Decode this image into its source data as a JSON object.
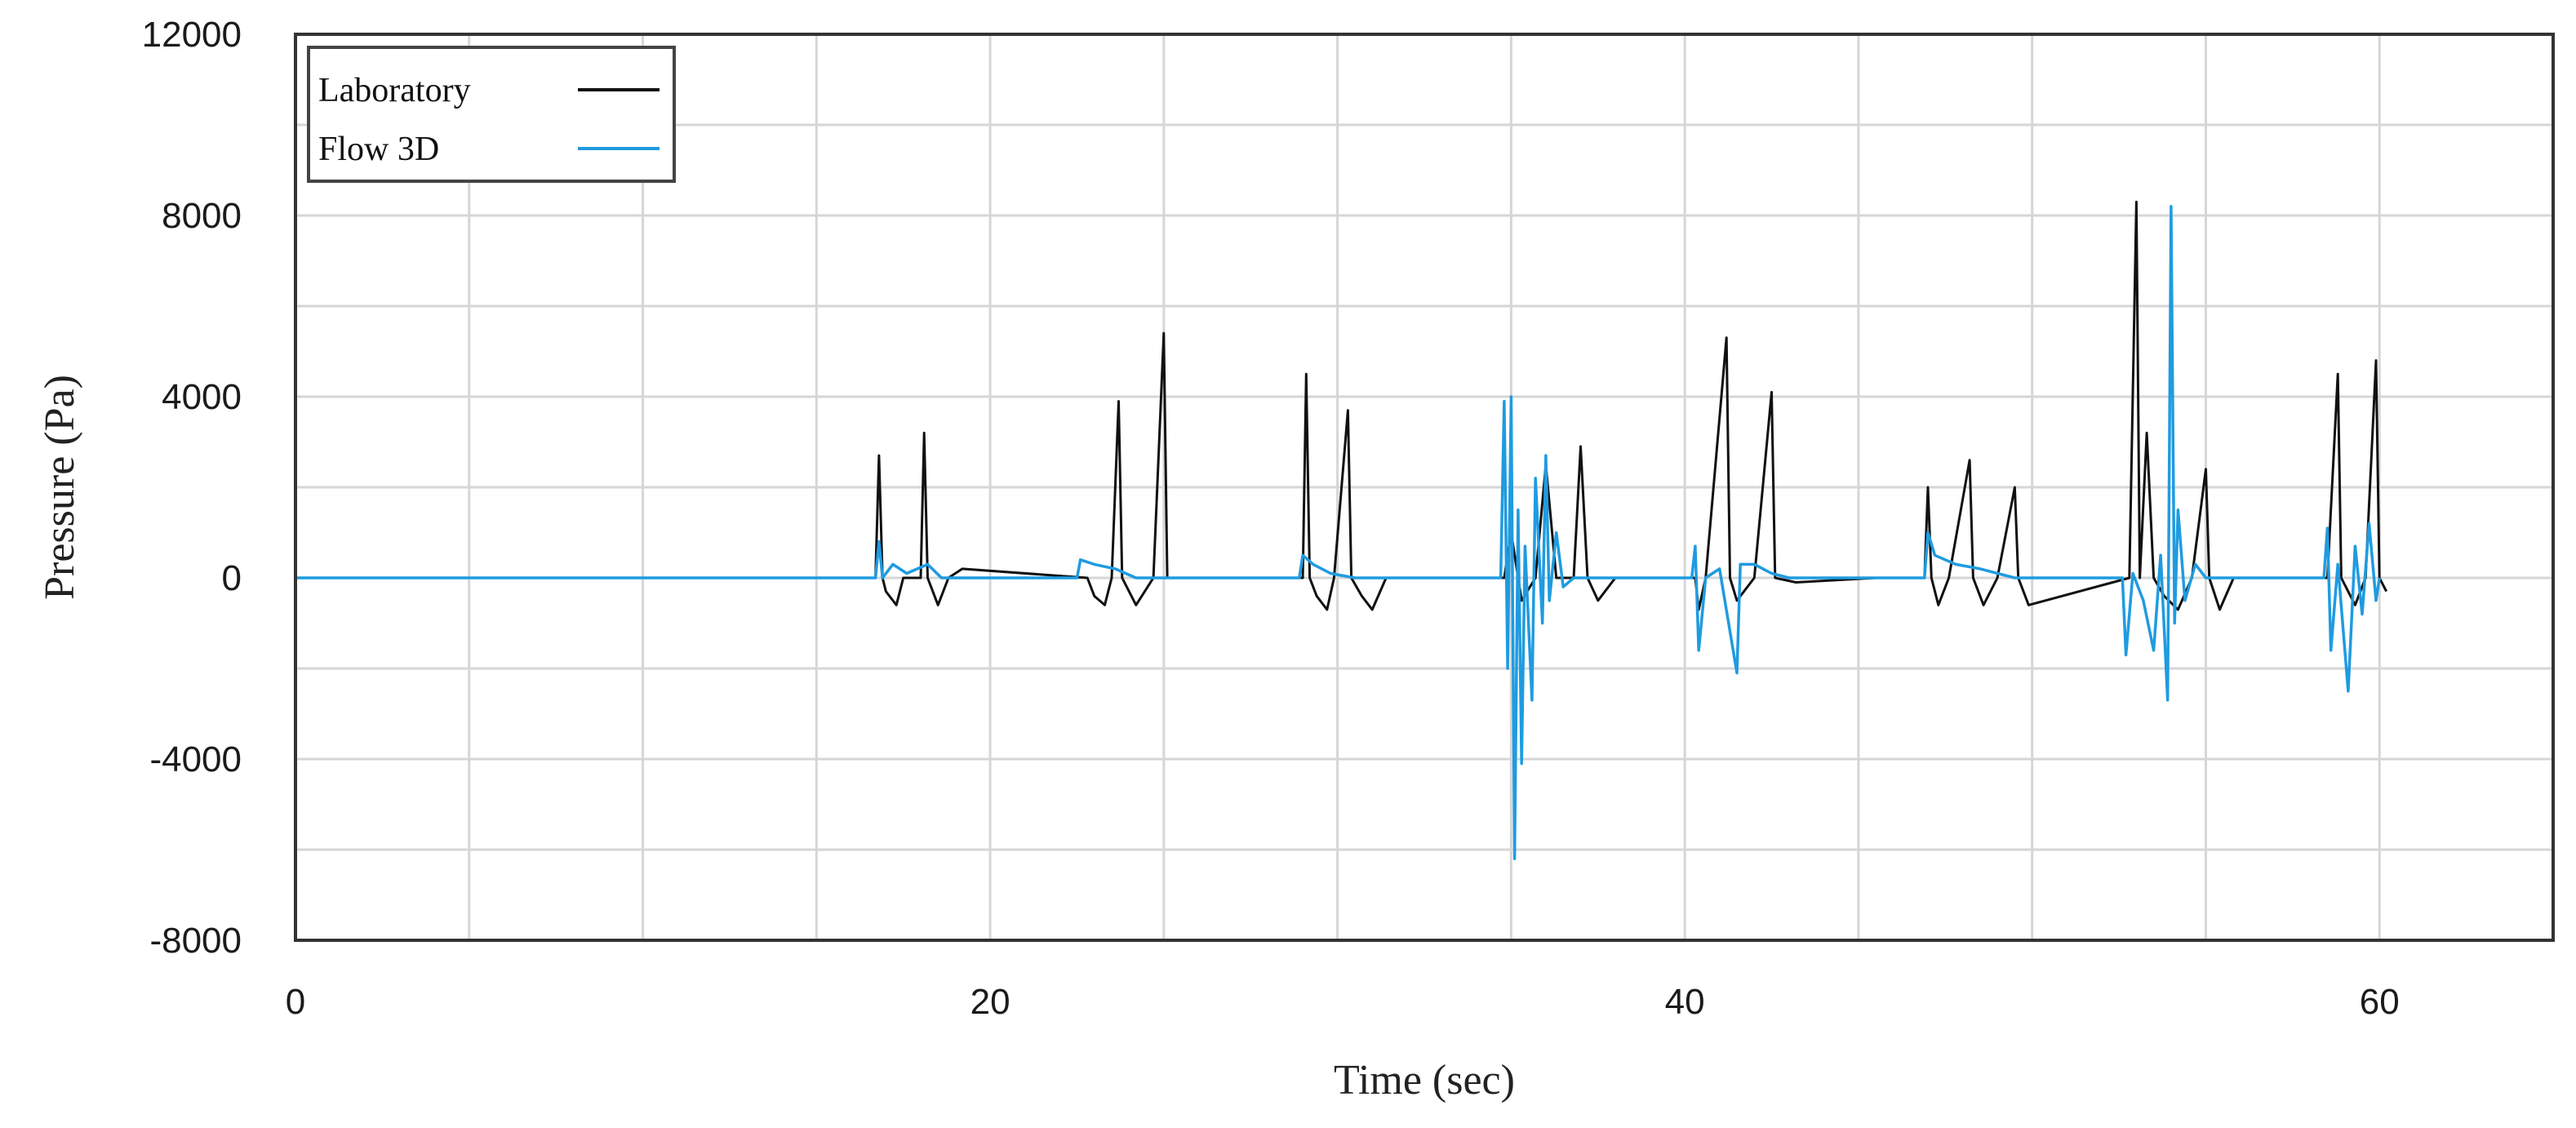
{
  "chart_data": {
    "type": "line",
    "xlabel": "Time (sec)",
    "ylabel": "Pressure (Pa)",
    "xlim": [
      0,
      65
    ],
    "ylim": [
      -8000,
      12000
    ],
    "xticks": [
      0,
      20,
      40,
      60
    ],
    "yticks": [
      12000,
      8000,
      4000,
      0,
      -4000,
      -8000
    ],
    "grid": true,
    "legend_position": "top-left",
    "series": [
      {
        "name": "Laboratory",
        "color": "#111111",
        "points": [
          [
            0,
            0
          ],
          [
            16.7,
            0
          ],
          [
            16.8,
            2700
          ],
          [
            16.9,
            0
          ],
          [
            17.0,
            -300
          ],
          [
            17.3,
            -600
          ],
          [
            17.5,
            0
          ],
          [
            18.0,
            0
          ],
          [
            18.1,
            3200
          ],
          [
            18.2,
            0
          ],
          [
            18.5,
            -600
          ],
          [
            18.8,
            0
          ],
          [
            19.2,
            200
          ],
          [
            22.8,
            0
          ],
          [
            23.0,
            -400
          ],
          [
            23.3,
            -600
          ],
          [
            23.5,
            0
          ],
          [
            23.7,
            3900
          ],
          [
            23.8,
            0
          ],
          [
            24.2,
            -600
          ],
          [
            24.7,
            0
          ],
          [
            25.0,
            5400
          ],
          [
            25.1,
            0
          ],
          [
            29.0,
            0
          ],
          [
            29.1,
            4500
          ],
          [
            29.2,
            0
          ],
          [
            29.4,
            -400
          ],
          [
            29.7,
            -700
          ],
          [
            29.9,
            0
          ],
          [
            30.3,
            3700
          ],
          [
            30.4,
            0
          ],
          [
            30.7,
            -400
          ],
          [
            31.0,
            -700
          ],
          [
            31.4,
            0
          ],
          [
            34.8,
            0
          ],
          [
            35.0,
            1000
          ],
          [
            35.3,
            -500
          ],
          [
            35.7,
            0
          ],
          [
            36.0,
            2500
          ],
          [
            36.3,
            0
          ],
          [
            36.8,
            0
          ],
          [
            37.0,
            2900
          ],
          [
            37.2,
            0
          ],
          [
            37.5,
            -500
          ],
          [
            38.0,
            0
          ],
          [
            40.3,
            0
          ],
          [
            40.4,
            -700
          ],
          [
            40.6,
            0
          ],
          [
            41.2,
            5300
          ],
          [
            41.3,
            0
          ],
          [
            41.5,
            -500
          ],
          [
            42.0,
            0
          ],
          [
            42.5,
            4100
          ],
          [
            42.6,
            0
          ],
          [
            43.2,
            -100
          ],
          [
            45.5,
            0
          ],
          [
            46.9,
            0
          ],
          [
            47.0,
            2000
          ],
          [
            47.1,
            0
          ],
          [
            47.3,
            -600
          ],
          [
            47.6,
            0
          ],
          [
            48.2,
            2600
          ],
          [
            48.3,
            0
          ],
          [
            48.6,
            -600
          ],
          [
            49.0,
            0
          ],
          [
            49.5,
            2000
          ],
          [
            49.6,
            0
          ],
          [
            49.9,
            -600
          ],
          [
            52.8,
            0
          ],
          [
            53.0,
            8300
          ],
          [
            53.1,
            0
          ],
          [
            53.3,
            3200
          ],
          [
            53.5,
            0
          ],
          [
            53.8,
            -400
          ],
          [
            54.2,
            -700
          ],
          [
            54.6,
            0
          ],
          [
            55.0,
            2400
          ],
          [
            55.1,
            0
          ],
          [
            55.4,
            -700
          ],
          [
            55.8,
            0
          ],
          [
            58.5,
            0
          ],
          [
            58.8,
            4500
          ],
          [
            58.9,
            0
          ],
          [
            59.3,
            -600
          ],
          [
            59.6,
            0
          ],
          [
            59.9,
            4800
          ],
          [
            60.0,
            0
          ],
          [
            60.2,
            -300
          ]
        ]
      },
      {
        "name": "Flow 3D",
        "color": "#1f9be0",
        "points": [
          [
            0,
            0
          ],
          [
            16.7,
            0
          ],
          [
            16.8,
            800
          ],
          [
            16.9,
            0
          ],
          [
            17.2,
            300
          ],
          [
            17.6,
            100
          ],
          [
            18.2,
            300
          ],
          [
            18.6,
            0
          ],
          [
            22.5,
            0
          ],
          [
            22.6,
            400
          ],
          [
            23.0,
            300
          ],
          [
            23.6,
            200
          ],
          [
            24.2,
            0
          ],
          [
            28.9,
            0
          ],
          [
            29.0,
            500
          ],
          [
            29.3,
            300
          ],
          [
            29.8,
            100
          ],
          [
            30.5,
            0
          ],
          [
            34.7,
            0
          ],
          [
            34.8,
            3900
          ],
          [
            34.9,
            -2000
          ],
          [
            35.0,
            4000
          ],
          [
            35.1,
            -6200
          ],
          [
            35.2,
            1500
          ],
          [
            35.3,
            -4100
          ],
          [
            35.4,
            700
          ],
          [
            35.6,
            -2700
          ],
          [
            35.7,
            2200
          ],
          [
            35.9,
            -1000
          ],
          [
            36.0,
            2700
          ],
          [
            36.1,
            -500
          ],
          [
            36.3,
            1000
          ],
          [
            36.5,
            -200
          ],
          [
            36.8,
            0
          ],
          [
            40.2,
            0
          ],
          [
            40.3,
            700
          ],
          [
            40.4,
            -1600
          ],
          [
            40.6,
            0
          ],
          [
            41.0,
            200
          ],
          [
            41.5,
            -2100
          ],
          [
            41.6,
            300
          ],
          [
            42.0,
            300
          ],
          [
            42.5,
            100
          ],
          [
            43.0,
            0
          ],
          [
            46.9,
            0
          ],
          [
            47.0,
            1000
          ],
          [
            47.2,
            500
          ],
          [
            47.8,
            300
          ],
          [
            48.5,
            200
          ],
          [
            49.5,
            0
          ],
          [
            52.6,
            0
          ],
          [
            52.7,
            -1700
          ],
          [
            52.9,
            100
          ],
          [
            53.2,
            -500
          ],
          [
            53.5,
            -1600
          ],
          [
            53.7,
            500
          ],
          [
            53.9,
            -2700
          ],
          [
            54.0,
            8200
          ],
          [
            54.1,
            -1000
          ],
          [
            54.2,
            1500
          ],
          [
            54.4,
            -500
          ],
          [
            54.7,
            300
          ],
          [
            55.0,
            0
          ],
          [
            58.4,
            0
          ],
          [
            58.5,
            1100
          ],
          [
            58.6,
            -1600
          ],
          [
            58.8,
            300
          ],
          [
            59.1,
            -2500
          ],
          [
            59.3,
            700
          ],
          [
            59.5,
            -800
          ],
          [
            59.7,
            1200
          ],
          [
            59.9,
            -500
          ],
          [
            60.0,
            0
          ]
        ]
      }
    ]
  }
}
